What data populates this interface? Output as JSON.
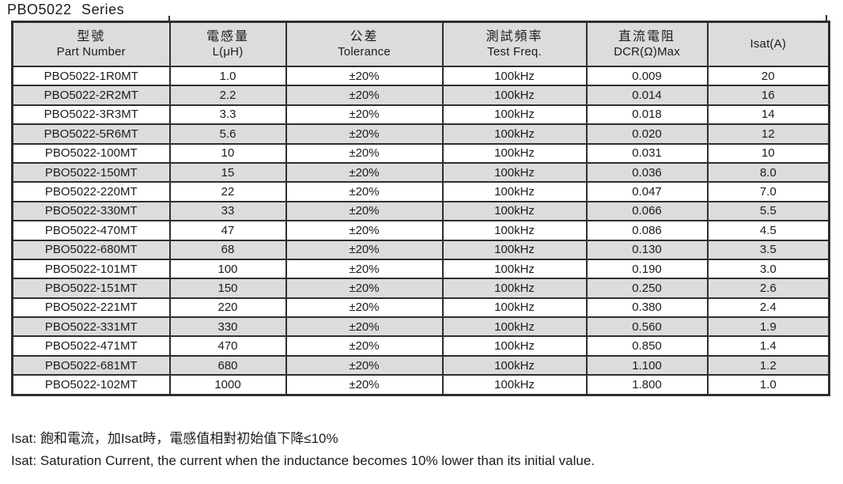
{
  "page": {
    "title": "PBO5022 Series"
  },
  "table": {
    "columns": [
      {
        "zh": "型號",
        "en": "Part Number"
      },
      {
        "zh": "電感量",
        "en": "L(μH)"
      },
      {
        "zh": "公差",
        "en": "Tolerance"
      },
      {
        "zh": "測試頻率",
        "en": "Test Freq."
      },
      {
        "zh": "直流電阻",
        "en": "DCR(Ω)Max"
      },
      {
        "zh": "",
        "en": "Isat(A)"
      }
    ],
    "column_keys": [
      "part-number",
      "inductance",
      "tolerance",
      "test-freq",
      "dcr-max",
      "isat"
    ],
    "rows": [
      [
        "PBO5022-1R0MT",
        "1.0",
        "±20%",
        "100kHz",
        "0.009",
        "20"
      ],
      [
        "PBO5022-2R2MT",
        "2.2",
        "±20%",
        "100kHz",
        "0.014",
        "16"
      ],
      [
        "PBO5022-3R3MT",
        "3.3",
        "±20%",
        "100kHz",
        "0.018",
        "14"
      ],
      [
        "PBO5022-5R6MT",
        "5.6",
        "±20%",
        "100kHz",
        "0.020",
        "12"
      ],
      [
        "PBO5022-100MT",
        "10",
        "±20%",
        "100kHz",
        "0.031",
        "10"
      ],
      [
        "PBO5022-150MT",
        "15",
        "±20%",
        "100kHz",
        "0.036",
        "8.0"
      ],
      [
        "PBO5022-220MT",
        "22",
        "±20%",
        "100kHz",
        "0.047",
        "7.0"
      ],
      [
        "PBO5022-330MT",
        "33",
        "±20%",
        "100kHz",
        "0.066",
        "5.5"
      ],
      [
        "PBO5022-470MT",
        "47",
        "±20%",
        "100kHz",
        "0.086",
        "4.5"
      ],
      [
        "PBO5022-680MT",
        "68",
        "±20%",
        "100kHz",
        "0.130",
        "3.5"
      ],
      [
        "PBO5022-101MT",
        "100",
        "±20%",
        "100kHz",
        "0.190",
        "3.0"
      ],
      [
        "PBO5022-151MT",
        "150",
        "±20%",
        "100kHz",
        "0.250",
        "2.6"
      ],
      [
        "PBO5022-221MT",
        "220",
        "±20%",
        "100kHz",
        "0.380",
        "2.4"
      ],
      [
        "PBO5022-331MT",
        "330",
        "±20%",
        "100kHz",
        "0.560",
        "1.9"
      ],
      [
        "PBO5022-471MT",
        "470",
        "±20%",
        "100kHz",
        "0.850",
        "1.4"
      ],
      [
        "PBO5022-681MT",
        "680",
        "±20%",
        "100kHz",
        "1.100",
        "1.2"
      ],
      [
        "PBO5022-102MT",
        "1000",
        "±20%",
        "100kHz",
        "1.800",
        "1.0"
      ]
    ]
  },
  "notes": {
    "zh": "Isat: 飽和電流，加Isat時，電感值相對初始值下降≤10%",
    "en": "Isat: Saturation Current, the current when the inductance becomes 10% lower than its initial value."
  },
  "colors": {
    "row_alt": "#dcdcdc",
    "header_bg": "#dcdcdc",
    "border": "#2e2e2e",
    "text": "#1c1c1c",
    "bg": "#ffffff"
  }
}
